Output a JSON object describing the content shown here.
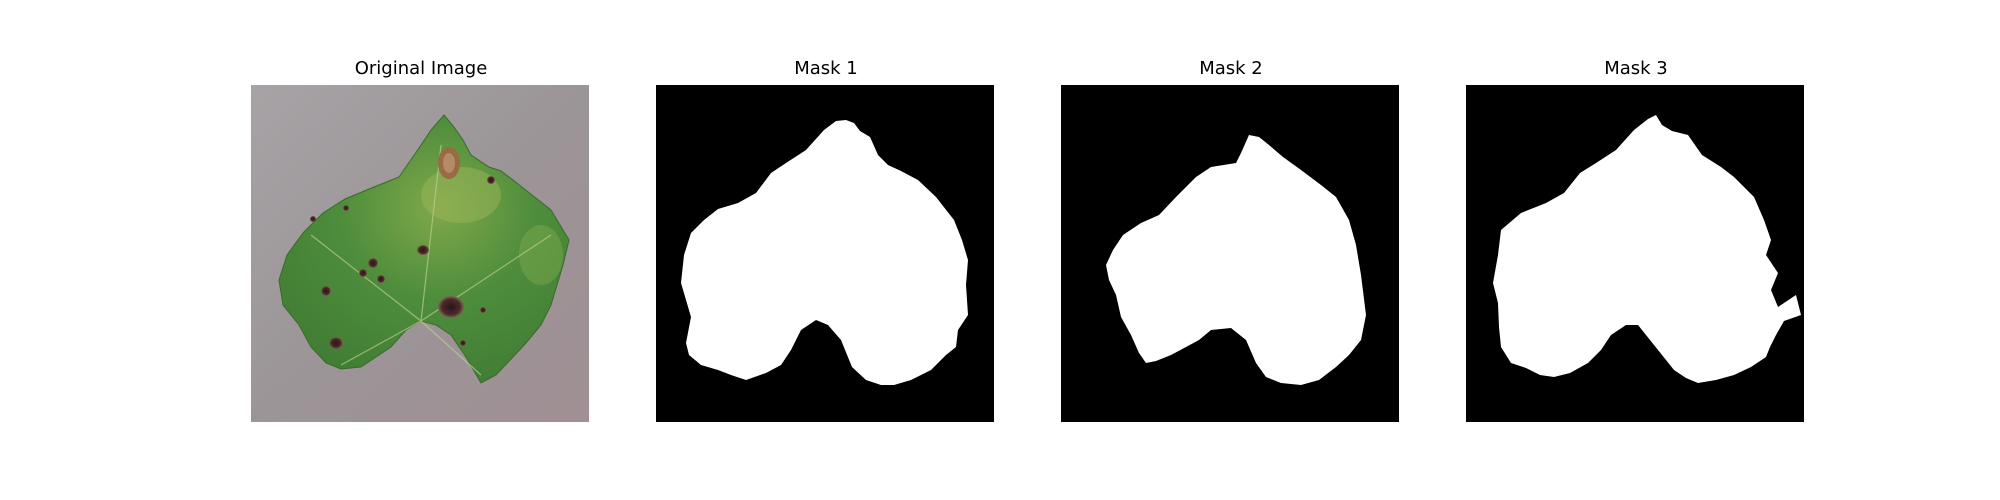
{
  "panels": [
    {
      "title": "Original Image"
    },
    {
      "title": "Mask 1"
    },
    {
      "title": "Mask 2"
    },
    {
      "title": "Mask 3"
    }
  ],
  "colors": {
    "mask_background": "#000000",
    "mask_foreground": "#ffffff",
    "photo_background": "#9e9898",
    "leaf_green": "#4f8f3a",
    "leaf_light": "#a9c25a",
    "lesion_dark": "#3a1f22",
    "lesion_brown": "#9a6a45"
  }
}
